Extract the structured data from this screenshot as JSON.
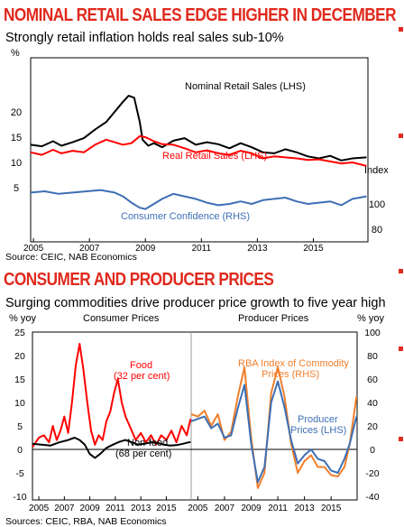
{
  "panel1": {
    "title": "NOMINAL RETAIL SALES EDGE HIGHER IN DECEMBER",
    "subtitle": "Strongly retail inflation holds real sales sub-10%",
    "source": "Source: CEIC, NAB Economics"
  },
  "panel2": {
    "title": "CONSUMER AND PRODUCER PRICES",
    "subtitle": "Surging commodities drive producer price growth to five year high",
    "source": "Sources: CEIC, RBA, NAB Economics"
  },
  "colors": {
    "title_red": "#e0291d",
    "black_series": "#000000",
    "red_series": "#ff0000",
    "blue_series": "#3d6fb5",
    "orange_series": "#f07f2b"
  },
  "chart_data": [
    {
      "type": "line",
      "title": "NOMINAL RETAIL SALES EDGE HIGHER IN DECEMBER",
      "subtitle": "Strongly retail inflation holds real sales sub-10%",
      "ylabel_left": "%",
      "ylabel_right": "Index",
      "ylim_left": [
        0,
        25
      ],
      "yticks_left": [
        "5",
        "10",
        "15",
        "20"
      ],
      "ylim_right_ticks": [
        "100",
        "80"
      ],
      "x_ticks": [
        "2005",
        "2007",
        "2009",
        "2011",
        "2013",
        "2015"
      ],
      "series": [
        {
          "name": "Nominal Retail Sales (LHS)",
          "color": "#000000",
          "axis": "left",
          "x": [
            2004.9,
            2005.3,
            2005.7,
            2006.0,
            2006.4,
            2006.8,
            2007.2,
            2007.6,
            2007.9,
            2008.2,
            2008.4,
            2008.6,
            2008.8,
            2008.9,
            2009.1,
            2009.3,
            2009.6,
            2010.0,
            2010.4,
            2010.8,
            2011.2,
            2011.6,
            2012.0,
            2012.4,
            2012.8,
            2013.2,
            2013.6,
            2014.0,
            2014.4,
            2014.8,
            2015.2,
            2015.6,
            2016.0,
            2016.4,
            2016.9
          ],
          "values": [
            13.5,
            13.2,
            14.2,
            13.3,
            14.0,
            14.8,
            16.5,
            18.0,
            20.0,
            22.0,
            23.2,
            22.8,
            18.0,
            14.5,
            13.3,
            13.8,
            13.0,
            14.3,
            14.8,
            13.5,
            14.0,
            13.6,
            12.8,
            13.8,
            13.0,
            12.0,
            11.8,
            12.6,
            12.0,
            11.2,
            10.8,
            11.3,
            10.4,
            10.8,
            11.0
          ]
        },
        {
          "name": "Real Retail Sales (LHS)",
          "color": "#ff0000",
          "axis": "left",
          "x": [
            2004.9,
            2005.3,
            2005.7,
            2006.0,
            2006.4,
            2006.8,
            2007.2,
            2007.6,
            2007.9,
            2008.2,
            2008.5,
            2008.8,
            2009.0,
            2009.3,
            2009.6,
            2010.0,
            2010.4,
            2010.8,
            2011.2,
            2011.6,
            2012.0,
            2012.4,
            2012.8,
            2013.2,
            2013.6,
            2014.0,
            2014.4,
            2014.8,
            2015.2,
            2015.6,
            2016.0,
            2016.4,
            2016.9
          ],
          "values": [
            12.0,
            11.5,
            12.5,
            11.8,
            12.3,
            12.0,
            13.5,
            14.5,
            14.0,
            13.5,
            13.8,
            15.2,
            15.0,
            14.2,
            13.6,
            13.5,
            12.8,
            12.0,
            12.4,
            11.8,
            11.5,
            12.3,
            11.8,
            10.8,
            11.2,
            11.0,
            10.8,
            10.5,
            10.6,
            10.2,
            9.8,
            10.0,
            9.3
          ]
        },
        {
          "name": "Consumer Confidence (RHS)",
          "color": "#3d6fb5",
          "axis": "right",
          "x": [
            2004.9,
            2005.4,
            2005.9,
            2006.4,
            2006.9,
            2007.4,
            2007.9,
            2008.2,
            2008.5,
            2008.8,
            2009.0,
            2009.3,
            2009.6,
            2010.0,
            2010.4,
            2010.8,
            2011.2,
            2011.6,
            2012.0,
            2012.4,
            2012.8,
            2013.2,
            2013.6,
            2014.0,
            2014.4,
            2014.8,
            2015.2,
            2015.6,
            2016.0,
            2016.4,
            2016.9
          ],
          "values": [
            109,
            110,
            108,
            109,
            110,
            111,
            109,
            106,
            101,
            97,
            96,
            100,
            104,
            108,
            106,
            104,
            101,
            99,
            100,
            102,
            100,
            103,
            104,
            105,
            102,
            100,
            101,
            102,
            99,
            104,
            106
          ]
        }
      ]
    },
    {
      "type": "line",
      "title": "Consumer Prices",
      "ylabel_left": "% yoy",
      "ylim": [
        -10,
        25
      ],
      "yticks": [
        "-10",
        "-5",
        "0",
        "5",
        "10",
        "15",
        "20",
        "25"
      ],
      "x_ticks": [
        "2005",
        "2007",
        "2009",
        "2011",
        "2013",
        "2015"
      ],
      "series": [
        {
          "name": "Food (32 per cent)",
          "color": "#ff0000",
          "x": [
            2004.5,
            2005.0,
            2005.4,
            2005.8,
            2006.1,
            2006.4,
            2006.7,
            2007.0,
            2007.3,
            2007.6,
            2007.9,
            2008.2,
            2008.5,
            2008.8,
            2009.1,
            2009.4,
            2009.7,
            2010.0,
            2010.3,
            2010.6,
            2010.9,
            2011.2,
            2011.5,
            2011.8,
            2012.2,
            2012.6,
            2013.0,
            2013.4,
            2013.8,
            2014.2,
            2014.6,
            2015.0,
            2015.4,
            2015.8,
            2016.2,
            2016.6,
            2016.9
          ],
          "values": [
            0.5,
            2.5,
            3.0,
            1.5,
            5.0,
            2.0,
            4.0,
            7.0,
            3.5,
            10.0,
            18.0,
            22.5,
            17.0,
            10.0,
            4.0,
            1.0,
            3.0,
            2.0,
            6.0,
            8.0,
            12.0,
            15.0,
            10.0,
            7.0,
            4.5,
            2.0,
            3.5,
            1.5,
            3.0,
            1.0,
            3.0,
            2.0,
            4.0,
            1.5,
            5.0,
            3.0,
            6.5
          ]
        },
        {
          "name": "Non-food (68 per cent)",
          "color": "#000000",
          "x": [
            2004.5,
            2005.2,
            2005.9,
            2006.6,
            2007.3,
            2007.8,
            2008.2,
            2008.6,
            2009.0,
            2009.4,
            2009.8,
            2010.3,
            2010.8,
            2011.3,
            2011.8,
            2012.3,
            2012.8,
            2013.3,
            2013.8,
            2014.3,
            2014.8,
            2015.3,
            2015.8,
            2016.3,
            2016.9
          ],
          "values": [
            1.2,
            1.0,
            0.8,
            1.5,
            2.0,
            2.5,
            2.0,
            1.0,
            -1.0,
            -1.8,
            -1.0,
            0.3,
            1.0,
            1.6,
            2.0,
            1.5,
            1.0,
            1.2,
            1.5,
            1.4,
            1.0,
            0.8,
            0.9,
            1.2,
            1.6
          ]
        }
      ]
    },
    {
      "type": "line",
      "title": "Producer Prices",
      "ylabel_right": "% yoy",
      "ylim": [
        -40,
        100
      ],
      "yticks": [
        "-40",
        "-20",
        "0",
        "20",
        "40",
        "60",
        "80",
        "100"
      ],
      "x_ticks": [
        "2005",
        "2007",
        "2009",
        "2011",
        "2013",
        "2015"
      ],
      "series": [
        {
          "name": "RBA Index of Commodity Prices (RHS)",
          "color": "#f07f2b",
          "x": [
            2004.5,
            2005.0,
            2005.5,
            2006.0,
            2006.5,
            2007.0,
            2007.5,
            2008.0,
            2008.5,
            2009.0,
            2009.5,
            2010.0,
            2010.5,
            2011.0,
            2011.5,
            2012.0,
            2012.5,
            2013.0,
            2013.5,
            2014.0,
            2014.5,
            2015.0,
            2015.5,
            2016.0,
            2016.4,
            2016.9
          ],
          "values": [
            30,
            28,
            33,
            20,
            30,
            8,
            15,
            45,
            70,
            10,
            -33,
            -20,
            48,
            70,
            45,
            5,
            -20,
            -10,
            -5,
            -15,
            -15,
            -22,
            -23,
            -15,
            5,
            45
          ]
        },
        {
          "name": "Producer Prices (LHS)",
          "color": "#3d6fb5",
          "x": [
            2004.5,
            2005.0,
            2005.5,
            2006.0,
            2006.5,
            2007.0,
            2007.5,
            2008.0,
            2008.5,
            2009.0,
            2009.5,
            2010.0,
            2010.5,
            2011.0,
            2011.5,
            2012.0,
            2012.5,
            2013.0,
            2013.5,
            2014.0,
            2014.5,
            2015.0,
            2015.5,
            2016.0,
            2016.4,
            2016.9
          ],
          "values": [
            24,
            26,
            28,
            18,
            22,
            10,
            12,
            35,
            55,
            5,
            -28,
            -15,
            40,
            58,
            36,
            8,
            -12,
            -5,
            0,
            -8,
            -10,
            -18,
            -20,
            -8,
            5,
            28
          ]
        }
      ]
    }
  ],
  "labels": {
    "c1_nominal": "Nominal Retail Sales (LHS)",
    "c1_real": "Real Retail Sales (LHS)",
    "c1_conf": "Consumer Confidence (RHS)",
    "c1_pct": "%",
    "c1_index": "Index",
    "c2_left_unit": "% yoy",
    "c2_right_unit": "% yoy",
    "c2_cons_header": "Consumer Prices",
    "c2_prod_header": "Producer Prices",
    "food_line1": "Food",
    "food_line2": "(32 per cent)",
    "nonfood_line1": "Non-food",
    "nonfood_line2": "(68 per cent)",
    "rba_line1": "RBA Index of Commodity",
    "rba_line2": "Prices (RHS)",
    "pp_line1": "Producer",
    "pp_line2": "Prices (LHS)"
  }
}
